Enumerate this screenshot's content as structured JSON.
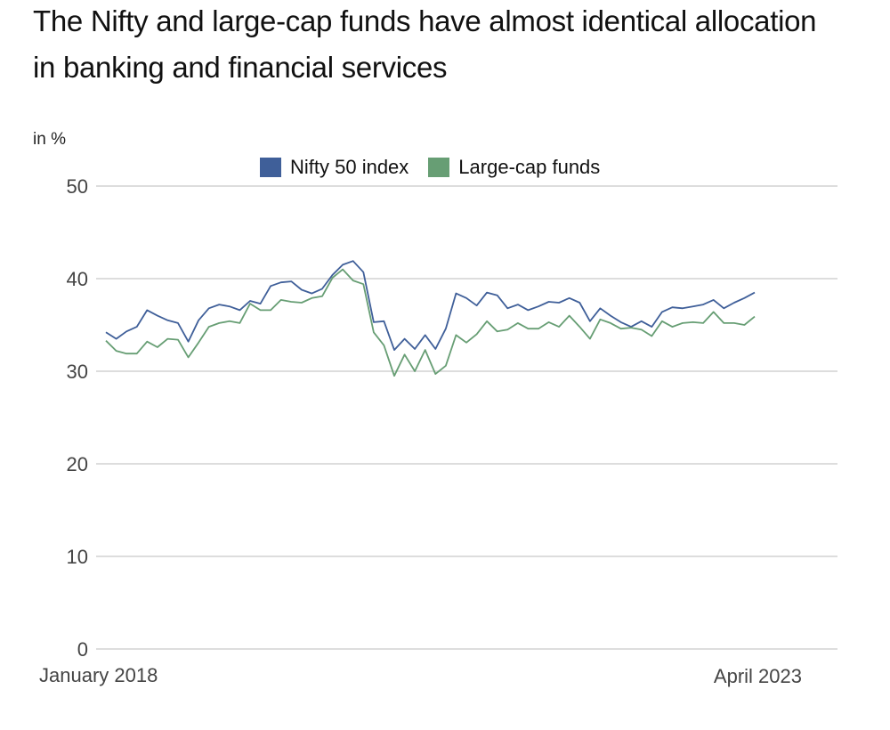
{
  "chart_data": {
    "type": "line",
    "title": "The Nifty and large-cap funds have almost identical allocation in banking and financial services",
    "ylabel": "in %",
    "xlabel": "",
    "x_start": "January 2018",
    "x_end": "April 2023",
    "x_tick_labels": [
      "January 2018",
      "April 2023"
    ],
    "frequency": "monthly",
    "ylim": [
      0,
      50
    ],
    "y_ticks": [
      0,
      10,
      20,
      30,
      40,
      50
    ],
    "grid": true,
    "legend_position": "top-center",
    "series": [
      {
        "name": "Nifty 50 index",
        "color": "#3f5f99",
        "values": [
          34.2,
          33.5,
          34.3,
          34.8,
          36.6,
          36.0,
          35.5,
          35.2,
          33.2,
          35.5,
          36.8,
          37.2,
          37.0,
          36.6,
          37.6,
          37.3,
          39.2,
          39.6,
          39.7,
          38.8,
          38.4,
          38.9,
          40.4,
          41.5,
          41.9,
          40.7,
          35.3,
          35.4,
          32.3,
          33.5,
          32.4,
          33.9,
          32.4,
          34.6,
          38.4,
          37.9,
          37.1,
          38.5,
          38.2,
          36.8,
          37.2,
          36.6,
          37.0,
          37.5,
          37.4,
          37.9,
          37.4,
          35.4,
          36.8,
          36.0,
          35.3,
          34.8,
          35.4,
          34.8,
          36.4,
          36.9,
          36.8,
          37.0,
          37.2,
          37.7,
          36.8,
          37.4,
          37.9,
          38.5
        ]
      },
      {
        "name": "Large-cap funds",
        "color": "#679e74",
        "values": [
          33.3,
          32.2,
          31.9,
          31.9,
          33.2,
          32.6,
          33.5,
          33.4,
          31.5,
          33.1,
          34.8,
          35.2,
          35.4,
          35.2,
          37.3,
          36.6,
          36.6,
          37.7,
          37.5,
          37.4,
          37.9,
          38.1,
          40.1,
          41.0,
          39.8,
          39.4,
          34.2,
          32.8,
          29.5,
          31.8,
          30.0,
          32.3,
          29.7,
          30.6,
          33.9,
          33.1,
          34.0,
          35.4,
          34.3,
          34.5,
          35.2,
          34.6,
          34.6,
          35.3,
          34.8,
          36.0,
          34.8,
          33.5,
          35.6,
          35.2,
          34.6,
          34.7,
          34.5,
          33.8,
          35.4,
          34.8,
          35.2,
          35.3,
          35.2,
          36.4,
          35.2,
          35.2,
          35.0,
          35.9
        ]
      }
    ]
  }
}
